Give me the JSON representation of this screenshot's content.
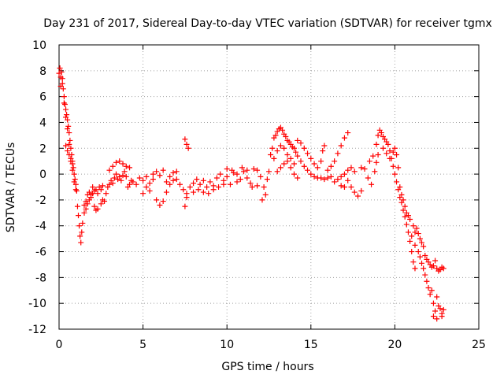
{
  "chart_data": {
    "type": "scatter",
    "title": "Day 231 of 2017, Sidereal Day-to-day VTEC variation (SDTVAR) for receiver tgmx",
    "xlabel": "GPS time / hours",
    "ylabel": "SDTVAR / TECUs",
    "xlim": [
      0,
      25
    ],
    "ylim": [
      -12,
      10
    ],
    "x_ticks": [
      0,
      5,
      10,
      15,
      20,
      25
    ],
    "y_ticks": [
      -12,
      -10,
      -8,
      -6,
      -4,
      -2,
      0,
      2,
      4,
      6,
      8,
      10
    ],
    "grid": true,
    "marker": "+",
    "marker_color": "#ff0000",
    "series": [
      {
        "name": "SDTVAR",
        "points": [
          [
            0.0,
            7.8
          ],
          [
            0.05,
            8.2
          ],
          [
            0.1,
            7.5
          ],
          [
            0.15,
            7.9
          ],
          [
            0.2,
            7.0
          ],
          [
            0.25,
            6.6
          ],
          [
            0.3,
            6.0
          ],
          [
            0.35,
            5.4
          ],
          [
            0.4,
            5.0
          ],
          [
            0.45,
            4.6
          ],
          [
            0.5,
            4.2
          ],
          [
            0.55,
            3.7
          ],
          [
            0.6,
            3.2
          ],
          [
            0.65,
            2.6
          ],
          [
            0.7,
            2.0
          ],
          [
            0.75,
            1.5
          ],
          [
            0.8,
            1.0
          ],
          [
            0.85,
            0.5
          ],
          [
            0.9,
            0.0
          ],
          [
            0.95,
            -0.4
          ],
          [
            1.0,
            -0.8
          ],
          [
            0.1,
            6.8
          ],
          [
            0.2,
            7.4
          ],
          [
            0.3,
            5.5
          ],
          [
            0.4,
            4.4
          ],
          [
            0.5,
            3.5
          ],
          [
            0.6,
            2.3
          ],
          [
            0.7,
            1.2
          ],
          [
            0.8,
            0.3
          ],
          [
            0.9,
            -0.6
          ],
          [
            0.4,
            2.2
          ],
          [
            0.5,
            1.8
          ],
          [
            0.6,
            1.5
          ],
          [
            0.7,
            1.0
          ],
          [
            0.8,
            0.8
          ],
          [
            1.0,
            -1.2
          ],
          [
            1.05,
            -1.3
          ],
          [
            1.1,
            -2.5
          ],
          [
            1.15,
            -3.2
          ],
          [
            1.2,
            -4.0
          ],
          [
            1.25,
            -4.8
          ],
          [
            1.3,
            -5.3
          ],
          [
            1.35,
            -4.5
          ],
          [
            1.4,
            -3.8
          ],
          [
            1.5,
            -3.0
          ],
          [
            1.6,
            -2.7
          ],
          [
            1.7,
            -2.3
          ],
          [
            1.8,
            -2.0
          ],
          [
            1.9,
            -1.8
          ],
          [
            2.0,
            -1.5
          ],
          [
            2.1,
            -1.3
          ],
          [
            2.2,
            -1.2
          ],
          [
            2.3,
            -1.5
          ],
          [
            2.4,
            -1.0
          ],
          [
            2.5,
            -1.2
          ],
          [
            2.6,
            -0.9
          ],
          [
            1.5,
            -2.4
          ],
          [
            1.6,
            -2.1
          ],
          [
            1.7,
            -1.6
          ],
          [
            1.8,
            -1.4
          ],
          [
            1.9,
            -1.6
          ],
          [
            2.0,
            -1.0
          ],
          [
            2.1,
            -2.5
          ],
          [
            2.2,
            -2.8
          ],
          [
            2.3,
            -2.7
          ],
          [
            2.5,
            -2.3
          ],
          [
            2.6,
            -2.0
          ],
          [
            2.7,
            -2.1
          ],
          [
            2.8,
            -1.5
          ],
          [
            2.9,
            -1.0
          ],
          [
            3.0,
            -0.8
          ],
          [
            3.1,
            -0.5
          ],
          [
            3.2,
            -0.7
          ],
          [
            3.3,
            -0.3
          ],
          [
            3.4,
            0.0
          ],
          [
            3.5,
            -0.4
          ],
          [
            3.6,
            -0.2
          ],
          [
            3.7,
            -0.5
          ],
          [
            3.8,
            -0.1
          ],
          [
            3.9,
            0.2
          ],
          [
            4.0,
            -0.2
          ],
          [
            4.1,
            -1.0
          ],
          [
            4.2,
            -0.8
          ],
          [
            4.3,
            -0.5
          ],
          [
            3.0,
            0.3
          ],
          [
            3.2,
            0.6
          ],
          [
            3.4,
            0.9
          ],
          [
            3.6,
            1.0
          ],
          [
            3.8,
            0.8
          ],
          [
            4.0,
            0.6
          ],
          [
            4.2,
            0.5
          ],
          [
            4.4,
            -0.6
          ],
          [
            4.6,
            -0.8
          ],
          [
            4.8,
            -0.3
          ],
          [
            5.0,
            -0.5
          ],
          [
            5.2,
            -0.2
          ],
          [
            5.4,
            -0.7
          ],
          [
            5.6,
            -0.4
          ],
          [
            5.0,
            -1.5
          ],
          [
            5.2,
            -1.0
          ],
          [
            5.4,
            -1.3
          ],
          [
            5.6,
            0.0
          ],
          [
            5.8,
            0.2
          ],
          [
            6.0,
            -0.1
          ],
          [
            6.2,
            0.3
          ],
          [
            6.4,
            -0.6
          ],
          [
            6.6,
            -0.2
          ],
          [
            6.8,
            0.1
          ],
          [
            7.0,
            -0.4
          ],
          [
            7.2,
            -0.8
          ],
          [
            7.4,
            -1.2
          ],
          [
            7.6,
            -1.5
          ],
          [
            5.8,
            -2.0
          ],
          [
            6.0,
            -2.4
          ],
          [
            6.2,
            -2.1
          ],
          [
            6.4,
            -1.4
          ],
          [
            6.6,
            -0.8
          ],
          [
            6.8,
            -0.5
          ],
          [
            7.0,
            0.2
          ],
          [
            7.5,
            2.7
          ],
          [
            7.6,
            2.3
          ],
          [
            7.7,
            2.0
          ],
          [
            7.5,
            -2.5
          ],
          [
            7.6,
            -1.8
          ],
          [
            7.8,
            -1.0
          ],
          [
            8.0,
            -0.7
          ],
          [
            8.2,
            -0.4
          ],
          [
            8.4,
            -0.8
          ],
          [
            8.6,
            -0.5
          ],
          [
            8.8,
            -1.0
          ],
          [
            9.0,
            -0.6
          ],
          [
            9.2,
            -0.9
          ],
          [
            9.4,
            -0.3
          ],
          [
            8.0,
            -1.4
          ],
          [
            8.3,
            -1.2
          ],
          [
            8.6,
            -1.4
          ],
          [
            8.9,
            -1.5
          ],
          [
            9.2,
            -1.2
          ],
          [
            9.5,
            -1.0
          ],
          [
            9.8,
            -0.8
          ],
          [
            9.6,
            0.0
          ],
          [
            9.8,
            -0.5
          ],
          [
            10.0,
            -0.2
          ],
          [
            10.2,
            -0.8
          ],
          [
            10.4,
            0.1
          ],
          [
            10.6,
            -0.6
          ],
          [
            10.8,
            -0.4
          ],
          [
            11.0,
            0.2
          ],
          [
            11.2,
            -0.3
          ],
          [
            11.4,
            -0.7
          ],
          [
            11.6,
            0.4
          ],
          [
            11.8,
            0.3
          ],
          [
            12.0,
            -0.2
          ],
          [
            12.2,
            -1.0
          ],
          [
            10.0,
            0.4
          ],
          [
            10.3,
            0.3
          ],
          [
            10.6,
            0.0
          ],
          [
            10.9,
            0.5
          ],
          [
            11.2,
            0.3
          ],
          [
            11.5,
            -1.0
          ],
          [
            11.8,
            -0.9
          ],
          [
            12.1,
            -2.0
          ],
          [
            12.3,
            -1.6
          ],
          [
            12.4,
            -0.4
          ],
          [
            12.5,
            0.2
          ],
          [
            12.6,
            1.5
          ],
          [
            12.7,
            2.0
          ],
          [
            12.8,
            2.8
          ],
          [
            12.9,
            3.0
          ],
          [
            13.0,
            3.3
          ],
          [
            13.1,
            3.5
          ],
          [
            13.2,
            3.6
          ],
          [
            13.3,
            3.4
          ],
          [
            13.4,
            3.1
          ],
          [
            13.5,
            2.9
          ],
          [
            13.6,
            2.6
          ],
          [
            13.7,
            2.5
          ],
          [
            13.8,
            2.3
          ],
          [
            13.9,
            2.1
          ],
          [
            14.0,
            2.0
          ],
          [
            14.1,
            1.7
          ],
          [
            12.8,
            1.2
          ],
          [
            13.0,
            1.8
          ],
          [
            13.2,
            2.2
          ],
          [
            13.4,
            2.0
          ],
          [
            13.6,
            1.5
          ],
          [
            13.8,
            1.2
          ],
          [
            14.0,
            0.8
          ],
          [
            13.0,
            0.2
          ],
          [
            13.2,
            0.5
          ],
          [
            13.4,
            0.8
          ],
          [
            13.6,
            1.0
          ],
          [
            13.8,
            0.5
          ],
          [
            14.0,
            0.0
          ],
          [
            14.2,
            -0.3
          ],
          [
            14.2,
            1.4
          ],
          [
            14.4,
            1.0
          ],
          [
            14.6,
            0.6
          ],
          [
            14.8,
            0.3
          ],
          [
            15.0,
            0.0
          ],
          [
            15.2,
            -0.2
          ],
          [
            15.4,
            -0.3
          ],
          [
            14.2,
            2.6
          ],
          [
            14.4,
            2.4
          ],
          [
            14.6,
            2.0
          ],
          [
            14.8,
            1.6
          ],
          [
            15.0,
            1.2
          ],
          [
            15.2,
            0.8
          ],
          [
            15.4,
            0.5
          ],
          [
            15.6,
            1.0
          ],
          [
            15.7,
            1.8
          ],
          [
            15.8,
            2.2
          ],
          [
            15.6,
            -0.3
          ],
          [
            15.8,
            -0.4
          ],
          [
            16.0,
            -0.3
          ],
          [
            16.2,
            -0.2
          ],
          [
            16.0,
            0.3
          ],
          [
            16.2,
            0.6
          ],
          [
            16.4,
            1.0
          ],
          [
            16.6,
            1.6
          ],
          [
            16.8,
            2.2
          ],
          [
            17.0,
            2.8
          ],
          [
            17.2,
            3.2
          ],
          [
            16.4,
            -0.6
          ],
          [
            16.6,
            -0.4
          ],
          [
            16.8,
            -0.2
          ],
          [
            17.0,
            0.0
          ],
          [
            17.2,
            0.3
          ],
          [
            17.4,
            0.5
          ],
          [
            17.6,
            0.2
          ],
          [
            16.8,
            -0.9
          ],
          [
            17.0,
            -1.0
          ],
          [
            17.2,
            -0.5
          ],
          [
            17.4,
            -1.0
          ],
          [
            17.6,
            -1.4
          ],
          [
            17.8,
            -1.7
          ],
          [
            18.0,
            -1.3
          ],
          [
            18.0,
            0.5
          ],
          [
            18.2,
            0.4
          ],
          [
            18.4,
            -0.3
          ],
          [
            18.6,
            -0.8
          ],
          [
            18.8,
            0.2
          ],
          [
            18.9,
            0.9
          ],
          [
            19.0,
            1.5
          ],
          [
            18.5,
            1.0
          ],
          [
            18.7,
            1.4
          ],
          [
            18.9,
            2.3
          ],
          [
            19.0,
            3.0
          ],
          [
            19.1,
            3.4
          ],
          [
            19.2,
            3.2
          ],
          [
            19.3,
            2.9
          ],
          [
            19.4,
            2.7
          ],
          [
            19.5,
            2.5
          ],
          [
            19.6,
            2.3
          ],
          [
            19.7,
            1.8
          ],
          [
            19.8,
            1.2
          ],
          [
            19.9,
            0.6
          ],
          [
            20.0,
            0.0
          ],
          [
            19.3,
            2.0
          ],
          [
            19.5,
            1.6
          ],
          [
            19.7,
            1.2
          ],
          [
            19.9,
            1.7
          ],
          [
            20.0,
            2.0
          ],
          [
            20.1,
            1.5
          ],
          [
            20.2,
            0.5
          ],
          [
            20.1,
            -0.6
          ],
          [
            20.2,
            -1.2
          ],
          [
            20.3,
            -1.8
          ],
          [
            20.4,
            -2.2
          ],
          [
            20.5,
            -2.8
          ],
          [
            20.6,
            -3.3
          ],
          [
            20.7,
            -3.9
          ],
          [
            20.3,
            -1.0
          ],
          [
            20.4,
            -1.6
          ],
          [
            20.5,
            -2.0
          ],
          [
            20.6,
            -2.5
          ],
          [
            20.7,
            -3.0
          ],
          [
            20.8,
            -3.2
          ],
          [
            20.9,
            -3.5
          ],
          [
            20.8,
            -4.5
          ],
          [
            20.9,
            -5.2
          ],
          [
            21.0,
            -6.0
          ],
          [
            21.1,
            -6.8
          ],
          [
            21.2,
            -7.3
          ],
          [
            21.0,
            -4.8
          ],
          [
            21.2,
            -5.5
          ],
          [
            21.1,
            -4.0
          ],
          [
            21.2,
            -4.5
          ],
          [
            21.3,
            -4.2
          ],
          [
            21.4,
            -4.6
          ],
          [
            21.5,
            -5.0
          ],
          [
            21.6,
            -5.3
          ],
          [
            21.7,
            -5.6
          ],
          [
            21.4,
            -6.0
          ],
          [
            21.5,
            -6.4
          ],
          [
            21.6,
            -6.9
          ],
          [
            21.7,
            -7.3
          ],
          [
            21.8,
            -7.8
          ],
          [
            21.9,
            -8.3
          ],
          [
            22.0,
            -8.8
          ],
          [
            21.8,
            -6.3
          ],
          [
            21.9,
            -6.6
          ],
          [
            22.0,
            -6.8
          ],
          [
            22.1,
            -7.0
          ],
          [
            22.2,
            -7.2
          ],
          [
            22.3,
            -7.1
          ],
          [
            22.4,
            -6.7
          ],
          [
            22.1,
            -9.3
          ],
          [
            22.2,
            -9.0
          ],
          [
            22.3,
            -10.0
          ],
          [
            22.4,
            -10.6
          ],
          [
            22.5,
            -11.2
          ],
          [
            22.3,
            -11.0
          ],
          [
            22.5,
            -7.3
          ],
          [
            22.6,
            -7.5
          ],
          [
            22.7,
            -7.4
          ],
          [
            22.8,
            -7.2
          ],
          [
            22.9,
            -7.3
          ],
          [
            22.5,
            -9.5
          ],
          [
            22.6,
            -10.2
          ],
          [
            22.7,
            -10.4
          ],
          [
            22.8,
            -10.8
          ],
          [
            22.9,
            -10.5
          ],
          [
            22.8,
            -11.0
          ]
        ]
      }
    ]
  }
}
